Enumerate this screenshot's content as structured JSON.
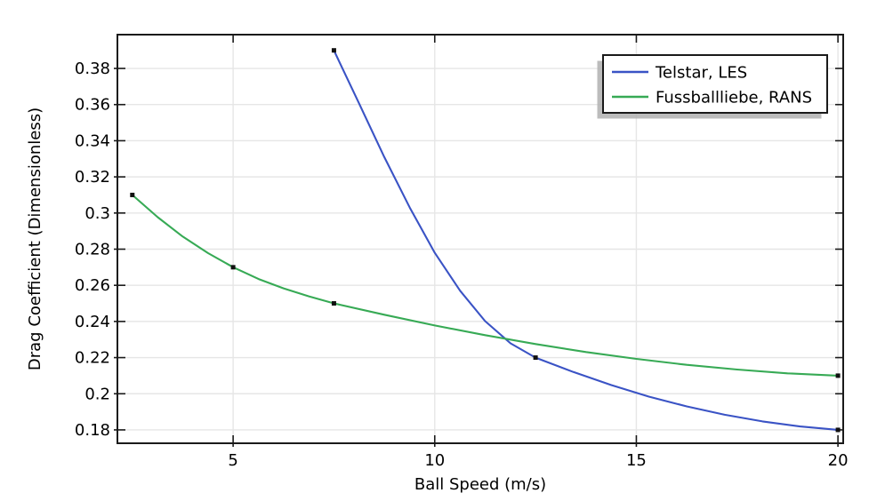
{
  "style": {
    "background": "#ffffff",
    "frame_color": "#1a1a1a",
    "grid_color": "#e6e6e6",
    "text_color": "#000000",
    "legend_shadow_color": "#b0b0b0",
    "legend_background": "#ffffff"
  },
  "chart_data": {
    "type": "line",
    "title": "",
    "xlabel": "Ball Speed (m/s)",
    "ylabel": "Drag Coefficient (Dimensionless)",
    "xlim": [
      2.13,
      20.13
    ],
    "ylim": [
      0.1726,
      0.3987
    ],
    "grid": true,
    "xticks": {
      "values": [
        5,
        10,
        15,
        20
      ],
      "labels": [
        "5",
        "10",
        "15",
        "20"
      ]
    },
    "yticks": {
      "values": [
        0.18,
        0.2,
        0.22,
        0.24,
        0.26,
        0.28,
        0.3,
        0.32,
        0.34,
        0.36,
        0.38
      ],
      "labels": [
        "0.18",
        "0.2",
        "0.22",
        "0.24",
        "0.26",
        "0.28",
        "0.3",
        "0.32",
        "0.34",
        "0.36",
        "0.38"
      ]
    },
    "legend": {
      "position": "top-right",
      "entries": [
        "Telstar, LES",
        "Fussballliebe, RANS"
      ]
    },
    "series": [
      {
        "name": "Telstar, LES",
        "color": "#3a53c5",
        "marker": "square",
        "marker_color": "#111111",
        "points": [
          [
            7.5,
            0.39
          ],
          [
            12.5,
            0.22
          ],
          [
            20,
            0.18
          ]
        ],
        "curve": [
          [
            7.5,
            0.39
          ],
          [
            8.13,
            0.3603
          ],
          [
            8.75,
            0.3309
          ],
          [
            9.38,
            0.303
          ],
          [
            10,
            0.278
          ],
          [
            10.63,
            0.257
          ],
          [
            11.25,
            0.2402
          ],
          [
            11.88,
            0.2279
          ],
          [
            12.5,
            0.22
          ],
          [
            13.44,
            0.212
          ],
          [
            14.38,
            0.2048
          ],
          [
            15.31,
            0.1984
          ],
          [
            16.25,
            0.193
          ],
          [
            17.19,
            0.1884
          ],
          [
            18.13,
            0.1847
          ],
          [
            19.06,
            0.1819
          ],
          [
            20,
            0.18
          ]
        ]
      },
      {
        "name": "Fussballliebe, RANS",
        "color": "#37aa55",
        "marker": "square",
        "marker_color": "#111111",
        "points": [
          [
            2.5,
            0.31
          ],
          [
            5,
            0.27
          ],
          [
            7.5,
            0.25
          ],
          [
            20,
            0.21
          ]
        ],
        "curve": [
          [
            2.5,
            0.31
          ],
          [
            3.13,
            0.2977
          ],
          [
            3.75,
            0.287
          ],
          [
            4.38,
            0.2778
          ],
          [
            5,
            0.27
          ],
          [
            5.63,
            0.2635
          ],
          [
            6.25,
            0.2583
          ],
          [
            6.88,
            0.2539
          ],
          [
            7.5,
            0.25
          ],
          [
            8.75,
            0.2437
          ],
          [
            10,
            0.2378
          ],
          [
            11.25,
            0.2324
          ],
          [
            12.5,
            0.2275
          ],
          [
            13.75,
            0.2231
          ],
          [
            15,
            0.2193
          ],
          [
            16.25,
            0.216
          ],
          [
            17.5,
            0.2134
          ],
          [
            18.75,
            0.2113
          ],
          [
            20,
            0.21
          ]
        ]
      }
    ]
  }
}
